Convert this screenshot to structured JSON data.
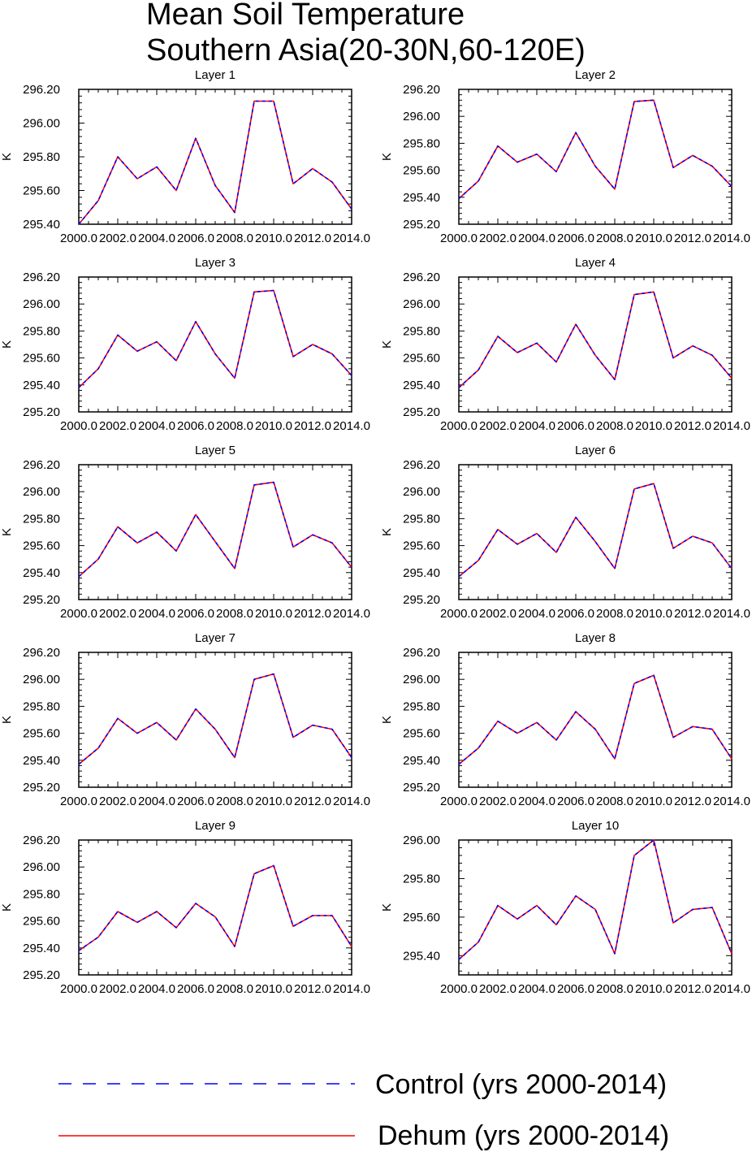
{
  "title": [
    "Mean Soil Temperature",
    "Southern Asia(20-30N,60-120E)"
  ],
  "colors": {
    "control": "#0000ff",
    "dehum": "#ff0000",
    "axis": "#000000"
  },
  "legend": [
    {
      "label": "Control (yrs 2000-2014)",
      "style": "dashed",
      "color": "#0000ff"
    },
    {
      "label": "Dehum (yrs 2000-2014)",
      "style": "solid",
      "color": "#ff0000"
    }
  ],
  "chart_data": [
    {
      "type": "line",
      "title": "Layer 1",
      "ylabel": "K",
      "x": [
        2000,
        2001,
        2002,
        2003,
        2004,
        2005,
        2006,
        2007,
        2008,
        2009,
        2010,
        2011,
        2012,
        2013,
        2014
      ],
      "xticks": [
        "2000.0",
        "2002.0",
        "2004.0",
        "2006.0",
        "2008.0",
        "2010.0",
        "2012.0",
        "2014.0"
      ],
      "ylim": [
        295.4,
        296.2
      ],
      "yticks": [
        "295.40",
        "295.60",
        "295.80",
        "296.00",
        "296.20"
      ],
      "series": [
        {
          "name": "Control (yrs 2000-2014)",
          "values": [
            295.4,
            295.54,
            295.8,
            295.67,
            295.74,
            295.6,
            295.91,
            295.63,
            295.47,
            296.13,
            296.13,
            295.64,
            295.73,
            295.65,
            295.49
          ]
        },
        {
          "name": "Dehum (yrs 2000-2014)",
          "values": [
            295.4,
            295.54,
            295.8,
            295.67,
            295.74,
            295.6,
            295.91,
            295.63,
            295.47,
            296.13,
            296.13,
            295.64,
            295.73,
            295.65,
            295.49
          ]
        }
      ]
    },
    {
      "type": "line",
      "title": "Layer 2",
      "ylabel": "K",
      "x": [
        2000,
        2001,
        2002,
        2003,
        2004,
        2005,
        2006,
        2007,
        2008,
        2009,
        2010,
        2011,
        2012,
        2013,
        2014
      ],
      "xticks": [
        "2000.0",
        "2002.0",
        "2004.0",
        "2006.0",
        "2008.0",
        "2010.0",
        "2012.0",
        "2014.0"
      ],
      "ylim": [
        295.2,
        296.2
      ],
      "yticks": [
        "295.20",
        "295.40",
        "295.60",
        "295.80",
        "296.00",
        "296.20"
      ],
      "series": [
        {
          "name": "Control (yrs 2000-2014)",
          "values": [
            295.39,
            295.52,
            295.78,
            295.66,
            295.72,
            295.59,
            295.88,
            295.63,
            295.46,
            296.11,
            296.12,
            295.62,
            295.71,
            295.63,
            295.48
          ]
        },
        {
          "name": "Dehum (yrs 2000-2014)",
          "values": [
            295.39,
            295.52,
            295.78,
            295.66,
            295.72,
            295.59,
            295.88,
            295.63,
            295.46,
            296.11,
            296.12,
            295.62,
            295.71,
            295.63,
            295.48
          ]
        }
      ]
    },
    {
      "type": "line",
      "title": "Layer 3",
      "ylabel": "K",
      "x": [
        2000,
        2001,
        2002,
        2003,
        2004,
        2005,
        2006,
        2007,
        2008,
        2009,
        2010,
        2011,
        2012,
        2013,
        2014
      ],
      "xticks": [
        "2000.0",
        "2002.0",
        "2004.0",
        "2006.0",
        "2008.0",
        "2010.0",
        "2012.0",
        "2014.0"
      ],
      "ylim": [
        295.2,
        296.2
      ],
      "yticks": [
        "295.20",
        "295.40",
        "295.60",
        "295.80",
        "296.00",
        "296.20"
      ],
      "series": [
        {
          "name": "Control (yrs 2000-2014)",
          "values": [
            295.38,
            295.52,
            295.77,
            295.65,
            295.72,
            295.58,
            295.87,
            295.63,
            295.45,
            296.09,
            296.1,
            295.61,
            295.7,
            295.63,
            295.47
          ]
        },
        {
          "name": "Dehum (yrs 2000-2014)",
          "values": [
            295.38,
            295.52,
            295.77,
            295.65,
            295.72,
            295.58,
            295.87,
            295.63,
            295.45,
            296.09,
            296.1,
            295.61,
            295.7,
            295.63,
            295.47
          ]
        }
      ]
    },
    {
      "type": "line",
      "title": "Layer 4",
      "ylabel": "K",
      "x": [
        2000,
        2001,
        2002,
        2003,
        2004,
        2005,
        2006,
        2007,
        2008,
        2009,
        2010,
        2011,
        2012,
        2013,
        2014
      ],
      "xticks": [
        "2000.0",
        "2002.0",
        "2004.0",
        "2006.0",
        "2008.0",
        "2010.0",
        "2012.0",
        "2014.0"
      ],
      "ylim": [
        295.2,
        296.2
      ],
      "yticks": [
        "295.20",
        "295.40",
        "295.60",
        "295.80",
        "296.00",
        "296.20"
      ],
      "series": [
        {
          "name": "Control (yrs 2000-2014)",
          "values": [
            295.38,
            295.51,
            295.76,
            295.64,
            295.71,
            295.57,
            295.85,
            295.62,
            295.44,
            296.07,
            296.09,
            295.6,
            295.69,
            295.62,
            295.45
          ]
        },
        {
          "name": "Dehum (yrs 2000-2014)",
          "values": [
            295.38,
            295.51,
            295.76,
            295.64,
            295.71,
            295.57,
            295.85,
            295.62,
            295.44,
            296.07,
            296.09,
            295.6,
            295.69,
            295.62,
            295.45
          ]
        }
      ]
    },
    {
      "type": "line",
      "title": "Layer 5",
      "ylabel": "K",
      "x": [
        2000,
        2001,
        2002,
        2003,
        2004,
        2005,
        2006,
        2007,
        2008,
        2009,
        2010,
        2011,
        2012,
        2013,
        2014
      ],
      "xticks": [
        "2000.0",
        "2002.0",
        "2004.0",
        "2006.0",
        "2008.0",
        "2010.0",
        "2012.0",
        "2014.0"
      ],
      "ylim": [
        295.2,
        296.2
      ],
      "yticks": [
        "295.20",
        "295.40",
        "295.60",
        "295.80",
        "296.00",
        "296.20"
      ],
      "series": [
        {
          "name": "Control (yrs 2000-2014)",
          "values": [
            295.37,
            295.5,
            295.74,
            295.62,
            295.7,
            295.56,
            295.83,
            295.63,
            295.43,
            296.05,
            296.07,
            295.59,
            295.68,
            295.62,
            295.44
          ]
        },
        {
          "name": "Dehum (yrs 2000-2014)",
          "values": [
            295.37,
            295.5,
            295.74,
            295.62,
            295.7,
            295.56,
            295.83,
            295.63,
            295.43,
            296.05,
            296.07,
            295.59,
            295.68,
            295.62,
            295.44
          ]
        }
      ]
    },
    {
      "type": "line",
      "title": "Layer 6",
      "ylabel": "K",
      "x": [
        2000,
        2001,
        2002,
        2003,
        2004,
        2005,
        2006,
        2007,
        2008,
        2009,
        2010,
        2011,
        2012,
        2013,
        2014
      ],
      "xticks": [
        "2000.0",
        "2002.0",
        "2004.0",
        "2006.0",
        "2008.0",
        "2010.0",
        "2012.0",
        "2014.0"
      ],
      "ylim": [
        295.2,
        296.2
      ],
      "yticks": [
        "295.20",
        "295.40",
        "295.60",
        "295.80",
        "296.00",
        "296.20"
      ],
      "series": [
        {
          "name": "Control (yrs 2000-2014)",
          "values": [
            295.37,
            295.49,
            295.72,
            295.61,
            295.69,
            295.55,
            295.81,
            295.63,
            295.43,
            296.02,
            296.06,
            295.58,
            295.67,
            295.62,
            295.43
          ]
        },
        {
          "name": "Dehum (yrs 2000-2014)",
          "values": [
            295.37,
            295.49,
            295.72,
            295.61,
            295.69,
            295.55,
            295.81,
            295.63,
            295.43,
            296.02,
            296.06,
            295.58,
            295.67,
            295.62,
            295.43
          ]
        }
      ]
    },
    {
      "type": "line",
      "title": "Layer 7",
      "ylabel": "K",
      "x": [
        2000,
        2001,
        2002,
        2003,
        2004,
        2005,
        2006,
        2007,
        2008,
        2009,
        2010,
        2011,
        2012,
        2013,
        2014
      ],
      "xticks": [
        "2000.0",
        "2002.0",
        "2004.0",
        "2006.0",
        "2008.0",
        "2010.0",
        "2012.0",
        "2014.0"
      ],
      "ylim": [
        295.2,
        296.2
      ],
      "yticks": [
        "295.20",
        "295.40",
        "295.60",
        "295.80",
        "296.00",
        "296.20"
      ],
      "series": [
        {
          "name": "Control (yrs 2000-2014)",
          "values": [
            295.37,
            295.49,
            295.71,
            295.6,
            295.68,
            295.55,
            295.78,
            295.63,
            295.42,
            296.0,
            296.04,
            295.57,
            295.66,
            295.63,
            295.42
          ]
        },
        {
          "name": "Dehum (yrs 2000-2014)",
          "values": [
            295.37,
            295.49,
            295.71,
            295.6,
            295.68,
            295.55,
            295.78,
            295.63,
            295.42,
            296.0,
            296.04,
            295.57,
            295.66,
            295.63,
            295.42
          ]
        }
      ]
    },
    {
      "type": "line",
      "title": "Layer 8",
      "ylabel": "K",
      "x": [
        2000,
        2001,
        2002,
        2003,
        2004,
        2005,
        2006,
        2007,
        2008,
        2009,
        2010,
        2011,
        2012,
        2013,
        2014
      ],
      "xticks": [
        "2000.0",
        "2002.0",
        "2004.0",
        "2006.0",
        "2008.0",
        "2010.0",
        "2012.0",
        "2014.0"
      ],
      "ylim": [
        295.2,
        296.2
      ],
      "yticks": [
        "295.20",
        "295.40",
        "295.60",
        "295.80",
        "296.00",
        "296.20"
      ],
      "series": [
        {
          "name": "Control (yrs 2000-2014)",
          "values": [
            295.37,
            295.49,
            295.69,
            295.6,
            295.68,
            295.55,
            295.76,
            295.63,
            295.41,
            295.97,
            296.03,
            295.57,
            295.65,
            295.63,
            295.41
          ]
        },
        {
          "name": "Dehum (yrs 2000-2014)",
          "values": [
            295.37,
            295.49,
            295.69,
            295.6,
            295.68,
            295.55,
            295.76,
            295.63,
            295.41,
            295.97,
            296.03,
            295.57,
            295.65,
            295.63,
            295.41
          ]
        }
      ]
    },
    {
      "type": "line",
      "title": "Layer 9",
      "ylabel": "K",
      "x": [
        2000,
        2001,
        2002,
        2003,
        2004,
        2005,
        2006,
        2007,
        2008,
        2009,
        2010,
        2011,
        2012,
        2013,
        2014
      ],
      "xticks": [
        "2000.0",
        "2002.0",
        "2004.0",
        "2006.0",
        "2008.0",
        "2010.0",
        "2012.0",
        "2014.0"
      ],
      "ylim": [
        295.2,
        296.2
      ],
      "yticks": [
        "295.20",
        "295.40",
        "295.60",
        "295.80",
        "296.00",
        "296.20"
      ],
      "series": [
        {
          "name": "Control (yrs 2000-2014)",
          "values": [
            295.38,
            295.48,
            295.67,
            295.59,
            295.67,
            295.55,
            295.73,
            295.63,
            295.41,
            295.95,
            296.01,
            295.56,
            295.64,
            295.64,
            295.41
          ]
        },
        {
          "name": "Dehum (yrs 2000-2014)",
          "values": [
            295.38,
            295.48,
            295.67,
            295.59,
            295.67,
            295.55,
            295.73,
            295.63,
            295.41,
            295.95,
            296.01,
            295.56,
            295.64,
            295.64,
            295.41
          ]
        }
      ]
    },
    {
      "type": "line",
      "title": "Layer 10",
      "ylabel": "K",
      "x": [
        2000,
        2001,
        2002,
        2003,
        2004,
        2005,
        2006,
        2007,
        2008,
        2009,
        2010,
        2011,
        2012,
        2013,
        2014
      ],
      "xticks": [
        "2000.0",
        "2002.0",
        "2004.0",
        "2006.0",
        "2008.0",
        "2010.0",
        "2012.0",
        "2014.0"
      ],
      "ylim": [
        295.3,
        296.0
      ],
      "yticks": [
        "295.40",
        "295.60",
        "295.80",
        "296.00"
      ],
      "series": [
        {
          "name": "Control (yrs 2000-2014)",
          "values": [
            295.38,
            295.47,
            295.66,
            295.59,
            295.66,
            295.56,
            295.71,
            295.64,
            295.41,
            295.92,
            296.0,
            295.57,
            295.64,
            295.65,
            295.41
          ]
        },
        {
          "name": "Dehum (yrs 2000-2014)",
          "values": [
            295.38,
            295.47,
            295.66,
            295.59,
            295.66,
            295.56,
            295.71,
            295.64,
            295.41,
            295.92,
            296.0,
            295.57,
            295.64,
            295.65,
            295.41
          ]
        }
      ]
    }
  ]
}
